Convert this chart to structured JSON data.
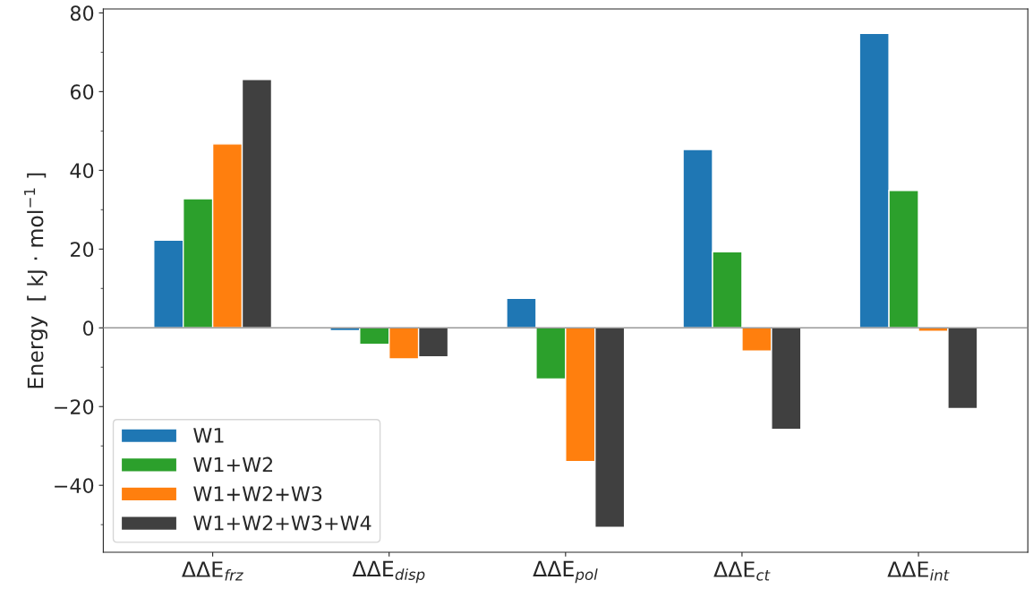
{
  "chart_data": {
    "type": "bar",
    "categories": [
      "ΔΔE$_{frz}$",
      "ΔΔE$_{disp}$",
      "ΔΔE$_{pol}$",
      "ΔΔE$_{ct}$",
      "ΔΔE$_{int}$"
    ],
    "ylabel": "Energy  [ kJ · mol$^{−1}$ ]",
    "series": [
      {
        "name": "W1",
        "color": "#1f77b4",
        "values": [
          22.3,
          -0.7,
          7.5,
          45.3,
          74.8
        ]
      },
      {
        "name": "W1+W2",
        "color": "#2ca02c",
        "values": [
          32.8,
          -4.2,
          -13.0,
          19.3,
          34.9
        ]
      },
      {
        "name": "W1+W2+W3",
        "color": "#ff7f0e",
        "values": [
          46.7,
          -7.9,
          -34.0,
          -5.9,
          -0.9
        ]
      },
      {
        "name": "W1+W2+W3+W4",
        "color": "#404040",
        "values": [
          63.1,
          -7.4,
          -50.7,
          -25.8,
          -20.5
        ]
      }
    ],
    "ylim": [
      -57,
      81
    ],
    "yticks": [
      {
        "value": -50,
        "label": null
      },
      {
        "value": -40,
        "label": "−40"
      },
      {
        "value": -30,
        "label": null
      },
      {
        "value": -20,
        "label": "−20"
      },
      {
        "value": -10,
        "label": null
      },
      0,
      {
        "value": 10,
        "label": null
      },
      20,
      {
        "value": 30,
        "label": null
      },
      40,
      {
        "value": 50,
        "label": null
      },
      60,
      {
        "value": 70,
        "label": null
      },
      80
    ],
    "ref_lines": [
      {
        "axis": "y",
        "value": 0,
        "color": "#999999"
      }
    ],
    "grid": false,
    "legend": "bottom left"
  }
}
